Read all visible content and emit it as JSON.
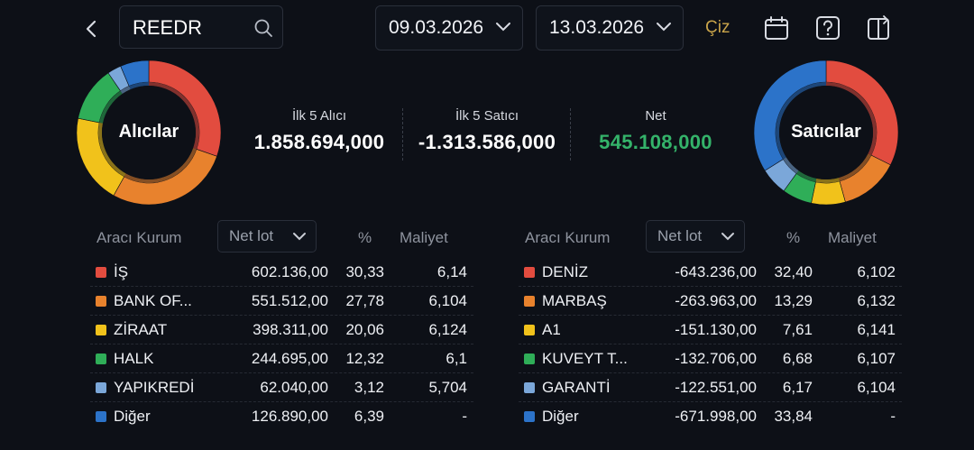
{
  "header": {
    "search_value": "REEDR",
    "date_from": "09.03.2026",
    "date_to": "13.03.2026",
    "draw_label": "Çiz"
  },
  "buyers_chart": {
    "label": "Alıcılar",
    "slices": [
      {
        "name": "İŞ",
        "percent": 30.33,
        "color": "#e24c3f"
      },
      {
        "name": "BANK OF...",
        "percent": 27.78,
        "color": "#e8822d"
      },
      {
        "name": "ZİRAAT",
        "percent": 20.06,
        "color": "#f1c21b"
      },
      {
        "name": "HALK",
        "percent": 12.32,
        "color": "#2fae58"
      },
      {
        "name": "YAPIKREDİ",
        "percent": 3.12,
        "color": "#7ba7d9"
      },
      {
        "name": "Diğer",
        "percent": 6.39,
        "color": "#2c73c9"
      }
    ]
  },
  "sellers_chart": {
    "label": "Satıcılar",
    "slices": [
      {
        "name": "DENİZ",
        "percent": 32.4,
        "color": "#e24c3f"
      },
      {
        "name": "MARBAŞ",
        "percent": 13.29,
        "color": "#e8822d"
      },
      {
        "name": "A1",
        "percent": 7.61,
        "color": "#f1c21b"
      },
      {
        "name": "KUVEYT T...",
        "percent": 6.68,
        "color": "#2fae58"
      },
      {
        "name": "GARANTİ",
        "percent": 6.17,
        "color": "#7ba7d9"
      },
      {
        "name": "Diğer",
        "percent": 33.84,
        "color": "#2c73c9"
      }
    ]
  },
  "summary": {
    "top5_buyers_label": "İlk 5 Alıcı",
    "top5_buyers_value": "1.858.694,000",
    "top5_sellers_label": "İlk 5 Satıcı",
    "top5_sellers_value": "-1.313.586,000",
    "net_label": "Net",
    "net_value": "545.108,000",
    "net_color": "#34b36a"
  },
  "buyers_table": {
    "col_broker": "Aracı Kurum",
    "col_netlot": "Net lot",
    "col_pct": "%",
    "col_cost": "Maliyet",
    "rows": [
      {
        "name": "İŞ",
        "lot": "602.136,00",
        "pct": "30,33",
        "cost": "6,14",
        "color": "#e24c3f"
      },
      {
        "name": "BANK OF...",
        "lot": "551.512,00",
        "pct": "27,78",
        "cost": "6,104",
        "color": "#e8822d"
      },
      {
        "name": "ZİRAAT",
        "lot": "398.311,00",
        "pct": "20,06",
        "cost": "6,124",
        "color": "#f1c21b"
      },
      {
        "name": "HALK",
        "lot": "244.695,00",
        "pct": "12,32",
        "cost": "6,1",
        "color": "#2fae58"
      },
      {
        "name": "YAPIKREDİ",
        "lot": "62.040,00",
        "pct": "3,12",
        "cost": "5,704",
        "color": "#7ba7d9"
      },
      {
        "name": "Diğer",
        "lot": "126.890,00",
        "pct": "6,39",
        "cost": "-",
        "color": "#2c73c9"
      }
    ]
  },
  "sellers_table": {
    "col_broker": "Aracı Kurum",
    "col_netlot": "Net lot",
    "col_pct": "%",
    "col_cost": "Maliyet",
    "rows": [
      {
        "name": "DENİZ",
        "lot": "-643.236,00",
        "pct": "32,40",
        "cost": "6,102",
        "color": "#e24c3f"
      },
      {
        "name": "MARBAŞ",
        "lot": "-263.963,00",
        "pct": "13,29",
        "cost": "6,132",
        "color": "#e8822d"
      },
      {
        "name": "A1",
        "lot": "-151.130,00",
        "pct": "7,61",
        "cost": "6,141",
        "color": "#f1c21b"
      },
      {
        "name": "KUVEYT T...",
        "lot": "-132.706,00",
        "pct": "6,68",
        "cost": "6,107",
        "color": "#2fae58"
      },
      {
        "name": "GARANTİ",
        "lot": "-122.551,00",
        "pct": "6,17",
        "cost": "6,104",
        "color": "#7ba7d9"
      },
      {
        "name": "Diğer",
        "lot": "-671.998,00",
        "pct": "33,84",
        "cost": "-",
        "color": "#2c73c9"
      }
    ]
  }
}
